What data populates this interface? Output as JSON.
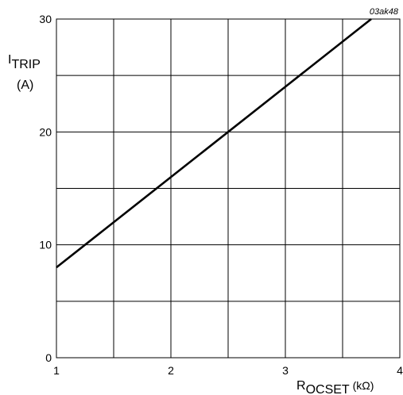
{
  "chart_data": {
    "type": "line",
    "figure_code": "03ak48",
    "xlabel": {
      "main": "R",
      "sub": "OCSET",
      "unit": " (kΩ)"
    },
    "ylabel": {
      "main": "I",
      "sub": "TRIP",
      "unit": "(A)"
    },
    "xlim": [
      1,
      4
    ],
    "ylim": [
      0,
      30
    ],
    "x_ticks": [
      1,
      2,
      3,
      4
    ],
    "y_ticks": [
      0,
      10,
      20,
      30
    ],
    "x_tick_labels": [
      "1",
      "2",
      "3",
      "4"
    ],
    "y_tick_labels": [
      "0",
      "10",
      "20",
      "30"
    ],
    "x_grid_step": 0.5,
    "y_grid_step": 5,
    "grid": true,
    "series": [
      {
        "x": [
          1,
          2,
          3,
          3.75
        ],
        "y": [
          8,
          16,
          24,
          30
        ]
      }
    ]
  }
}
